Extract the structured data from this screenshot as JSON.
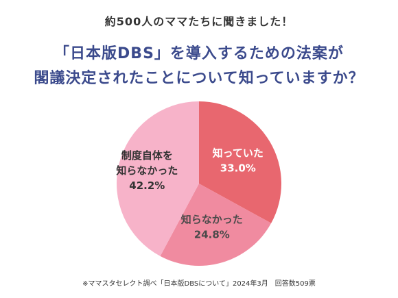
{
  "header": {
    "kicker": "約500人のママたちに聞きました！",
    "headline_line1": "「日本版DBS」を導入するための法案が",
    "headline_line2": "閣議決定されたことについて知っていますか？"
  },
  "chart_data": {
    "type": "pie",
    "title": "",
    "slices": [
      {
        "label_lines": [
          "知っていた"
        ],
        "value": 33.0,
        "display": "33.0%",
        "color": "#e8676f",
        "text_color": "#ffffff"
      },
      {
        "label_lines": [
          "知らなかった"
        ],
        "value": 24.8,
        "display": "24.8%",
        "color": "#f08ba0",
        "text_color": "#4a4a4a"
      },
      {
        "label_lines": [
          "制度自体を",
          "知らなかった"
        ],
        "value": 42.2,
        "display": "42.2%",
        "color": "#f7b3c9",
        "text_color": "#333333"
      }
    ],
    "start_angle_deg": 0,
    "direction": "clockwise",
    "legend": "none"
  },
  "footnote": "※ママスタセレクト調べ「日本版DBSについて」2024年3月　回答数509票"
}
